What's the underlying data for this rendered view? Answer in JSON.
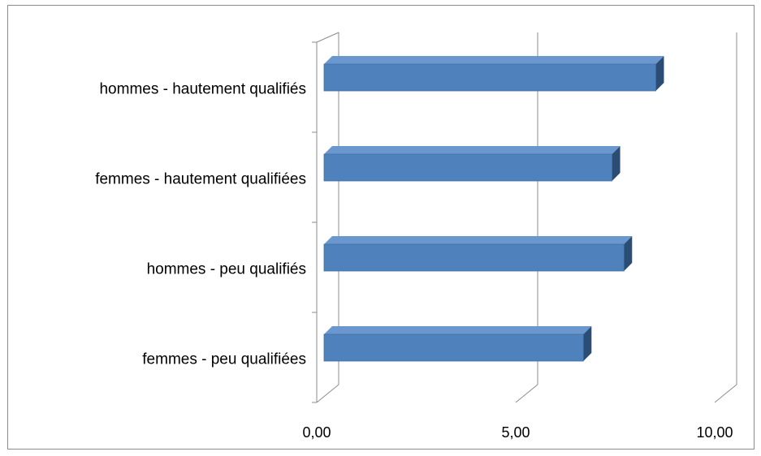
{
  "chart_data": {
    "type": "bar",
    "orientation": "horizontal",
    "style": "3d",
    "categories": [
      "hommes - hautement qualifiés",
      "femmes - hautement qualifiées",
      "hommes - peu qualifiés",
      "femmes - peu qualifiées"
    ],
    "values": [
      8.52,
      7.42,
      7.72,
      6.7
    ],
    "x_ticks": [
      "0,00",
      "5,00",
      "10,00"
    ],
    "xlim": [
      0,
      10
    ],
    "grid": true,
    "legend": "none",
    "colors": {
      "bar_front": "#4f81bd",
      "bar_top": "#6b97cf",
      "bar_side": "#2b4c75",
      "gridline": "#8c8c8c"
    }
  }
}
